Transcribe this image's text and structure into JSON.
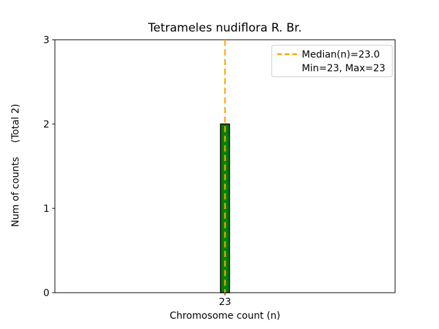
{
  "chart_data": {
    "type": "bar",
    "subtype": "histogram",
    "title": "Tetrameles nudiflora R. Br.",
    "xlabel": "Chromosome count (n)",
    "ylabel": "Num of counts",
    "ylabel_note": "(Total 2)",
    "categories": [
      23
    ],
    "values": [
      2
    ],
    "total_counts": 2,
    "median": 23.0,
    "min": 23,
    "max": 23,
    "ylim": [
      0,
      3
    ],
    "yticks": [
      0,
      1,
      2,
      3
    ],
    "xticks": [
      23
    ],
    "grid": false,
    "legend": {
      "position": "upper right",
      "entries": [
        "Median(n)=23.0",
        "Min=23, Max=23"
      ]
    },
    "colors": {
      "bar_fill": "#008000",
      "bar_edge": "#000000",
      "median_line": "#FFA500"
    }
  }
}
